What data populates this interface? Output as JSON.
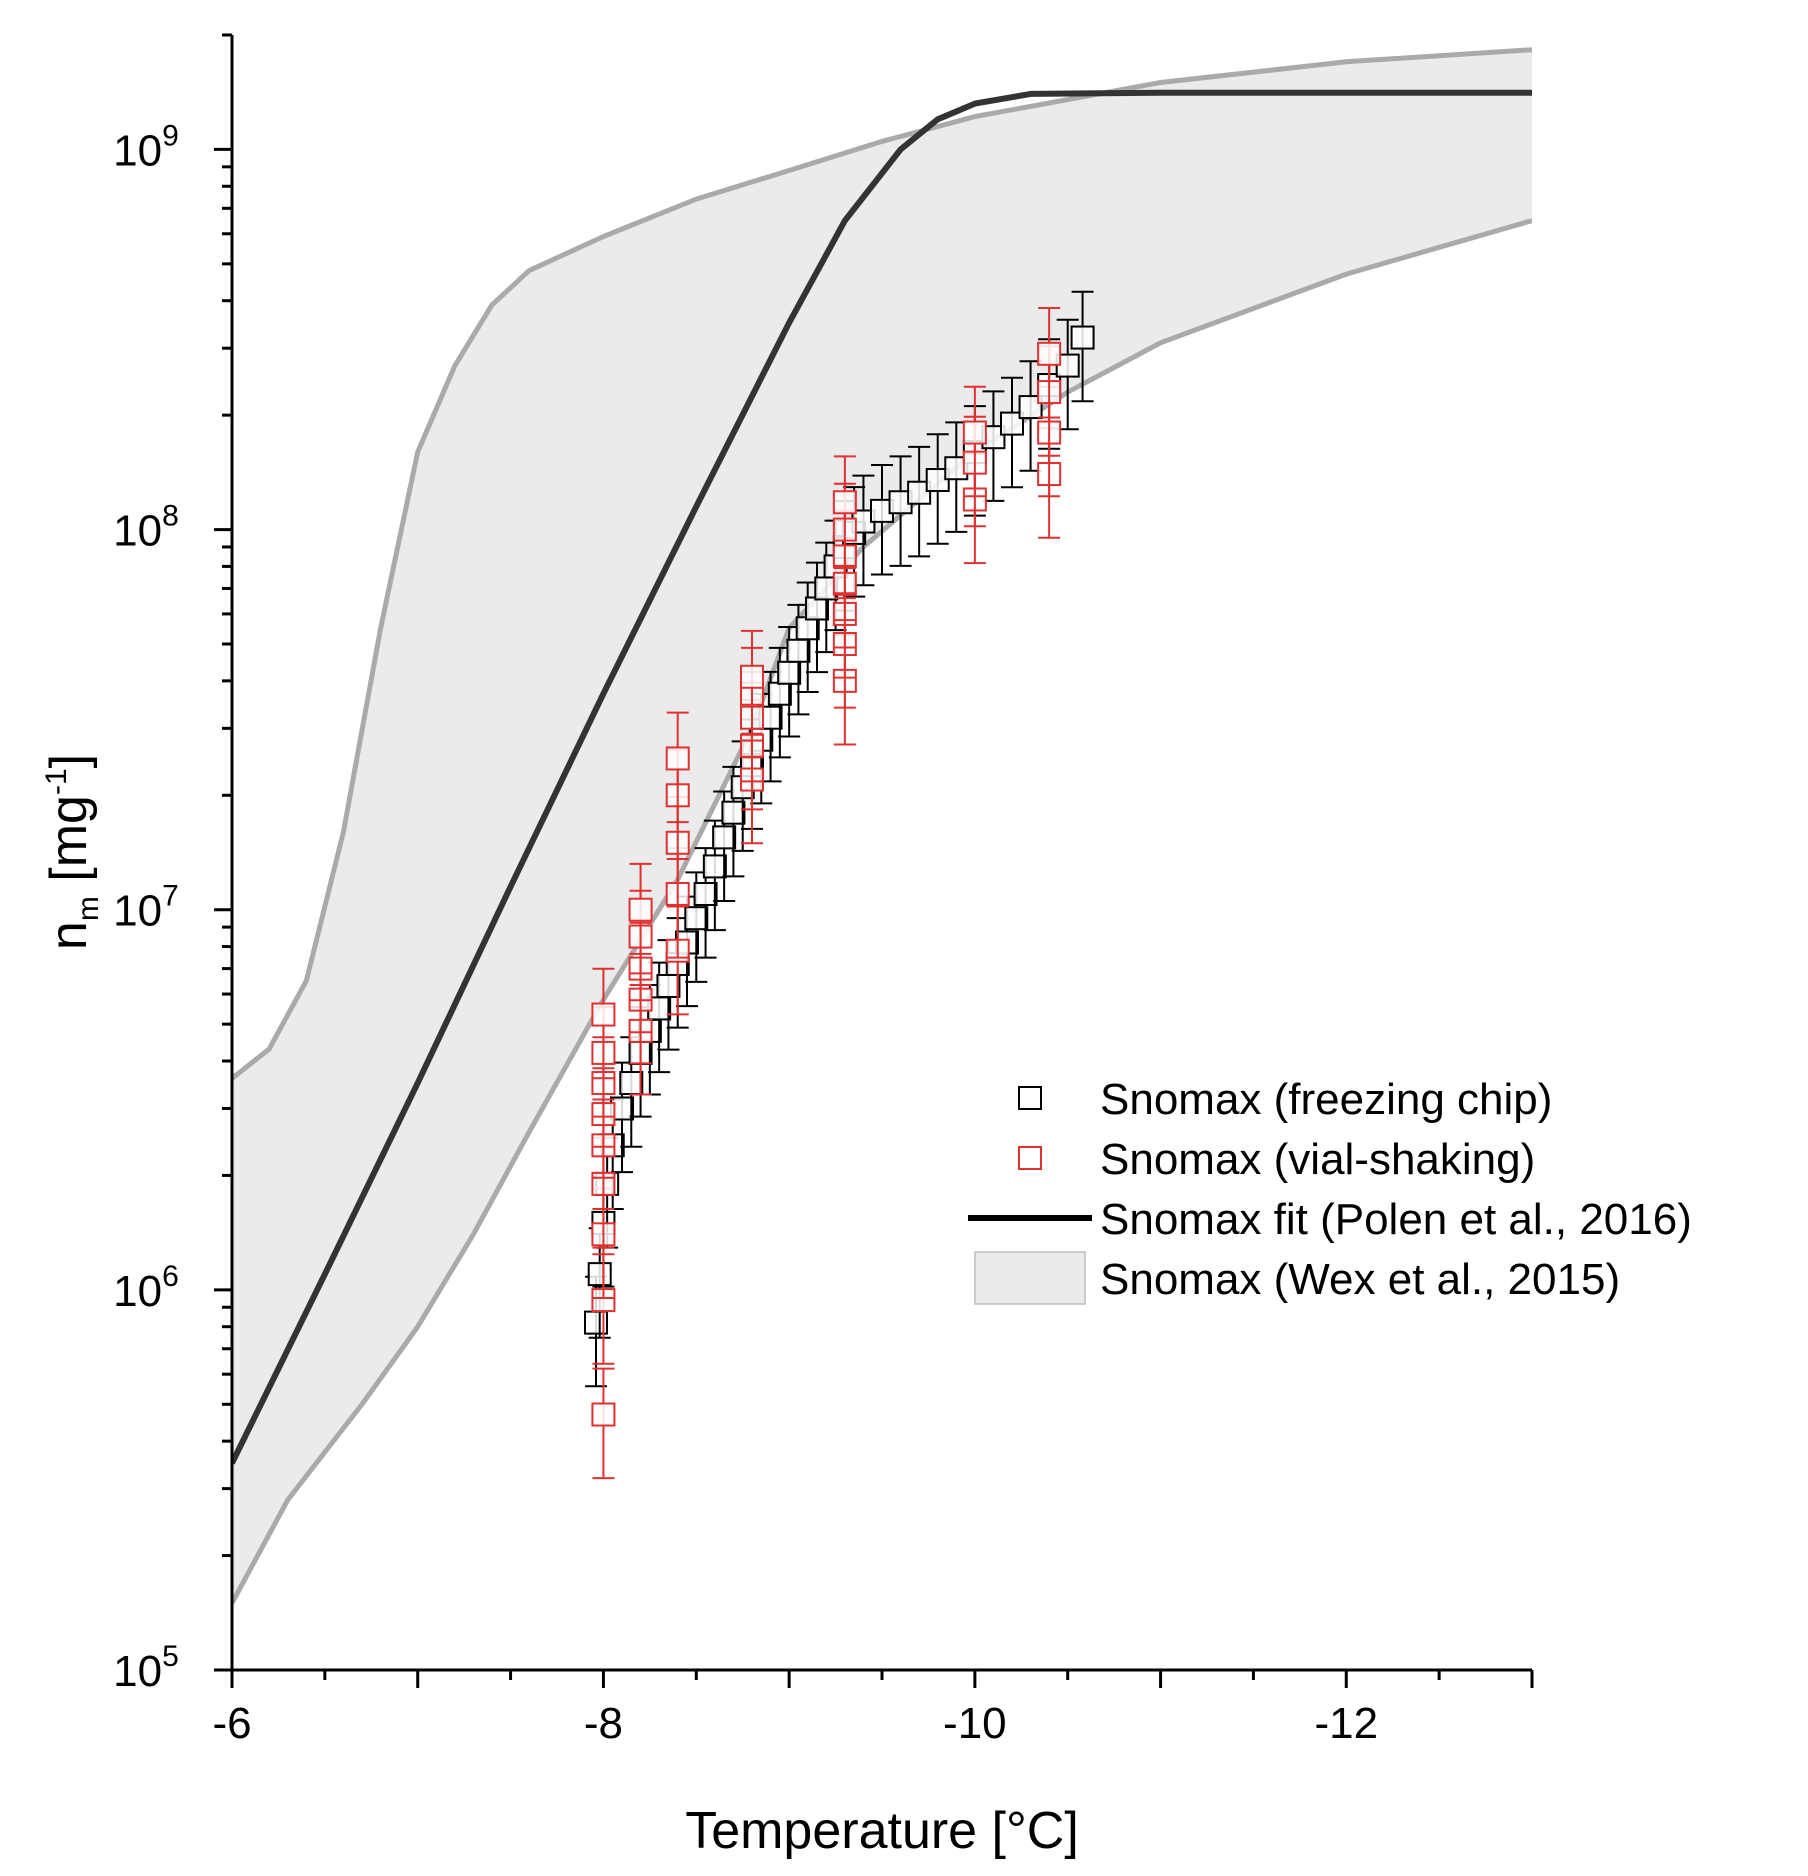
{
  "chart_data": {
    "type": "scatter",
    "title": "",
    "xlabel": "Temperature [°C]",
    "ylabel": {
      "base": "n",
      "subscript": "m",
      "unit_open": " [mg",
      "unit_exp": "-1",
      "unit_close": "]"
    },
    "x_range": [
      -6,
      -13
    ],
    "y_range": [
      100000,
      2000000000
    ],
    "y_scale": "log",
    "grid": false,
    "legend_position": "right-middle",
    "x_ticks": [
      {
        "value": -6,
        "label": "-6"
      },
      {
        "value": -8,
        "label": "-8"
      },
      {
        "value": -10,
        "label": "-10"
      },
      {
        "value": -12,
        "label": "-12"
      }
    ],
    "y_ticks": [
      {
        "value": 100000,
        "base": "10",
        "exp": "5"
      },
      {
        "value": 1000000,
        "base": "10",
        "exp": "6"
      },
      {
        "value": 10000000,
        "base": "10",
        "exp": "7"
      },
      {
        "value": 100000000,
        "base": "10",
        "exp": "8"
      },
      {
        "value": 1000000000,
        "base": "10",
        "exp": "9"
      }
    ],
    "legend": [
      {
        "label": "Snomax (freezing chip)",
        "kind": "marker",
        "color": "#000000"
      },
      {
        "label": "Snomax (vial-shaking)",
        "kind": "marker",
        "color": "#e03030"
      },
      {
        "label": "Snomax fit (Polen et al., 2016)",
        "kind": "line",
        "color": "#000000"
      },
      {
        "label": "Snomax (Wex et al., 2015)",
        "kind": "band",
        "color": "#ebebeb"
      }
    ],
    "series": [
      {
        "name": "Snomax (Wex et al., 2015)",
        "type": "band",
        "color": "#ebebeb",
        "edge_color": "#aaaaaa",
        "upper": [
          [
            -6.0,
            3600000
          ],
          [
            -6.2,
            4300000
          ],
          [
            -6.4,
            6500000
          ],
          [
            -6.6,
            16000000
          ],
          [
            -6.8,
            55000000
          ],
          [
            -7.0,
            160000000
          ],
          [
            -7.2,
            270000000
          ],
          [
            -7.4,
            390000000
          ],
          [
            -7.6,
            480000000
          ],
          [
            -8.0,
            590000000
          ],
          [
            -8.5,
            740000000
          ],
          [
            -9.0,
            880000000
          ],
          [
            -9.5,
            1050000000
          ],
          [
            -10.0,
            1220000000
          ],
          [
            -11.0,
            1500000000
          ],
          [
            -12.0,
            1700000000
          ],
          [
            -13.0,
            1830000000
          ]
        ],
        "lower": [
          [
            -6.0,
            150000
          ],
          [
            -6.3,
            280000
          ],
          [
            -6.7,
            500000
          ],
          [
            -7.0,
            800000
          ],
          [
            -7.3,
            1400000
          ],
          [
            -7.6,
            2600000
          ],
          [
            -8.0,
            5800000
          ],
          [
            -8.4,
            12000000
          ],
          [
            -8.8,
            30000000
          ],
          [
            -9.0,
            55000000
          ],
          [
            -9.4,
            90000000
          ],
          [
            -10.0,
            160000000
          ],
          [
            -10.5,
            230000000
          ],
          [
            -11.0,
            310000000
          ],
          [
            -12.0,
            470000000
          ],
          [
            -13.0,
            650000000
          ]
        ]
      },
      {
        "name": "Snomax fit (Polen et al., 2016)",
        "type": "line",
        "color": "#333333",
        "points": [
          [
            -6.0,
            350000
          ],
          [
            -6.5,
            1100000
          ],
          [
            -7.0,
            3500000
          ],
          [
            -7.5,
            11500000
          ],
          [
            -8.0,
            37000000
          ],
          [
            -8.5,
            115000000
          ],
          [
            -9.0,
            350000000
          ],
          [
            -9.3,
            650000000
          ],
          [
            -9.6,
            1000000000
          ],
          [
            -9.8,
            1200000000
          ],
          [
            -10.0,
            1320000000
          ],
          [
            -10.3,
            1400000000
          ],
          [
            -11.0,
            1410000000
          ],
          [
            -12.0,
            1410000000
          ],
          [
            -13.0,
            1410000000
          ]
        ]
      },
      {
        "name": "Snomax (freezing chip)",
        "type": "scatter",
        "color": "#000000",
        "err_rel": 0.32,
        "points": [
          [
            -7.96,
            820000
          ],
          [
            -7.98,
            1100000
          ],
          [
            -8.0,
            1500000
          ],
          [
            -8.02,
            1900000
          ],
          [
            -8.05,
            2400000
          ],
          [
            -8.1,
            3000000
          ],
          [
            -8.15,
            3500000
          ],
          [
            -8.2,
            4200000
          ],
          [
            -8.25,
            4800000
          ],
          [
            -8.3,
            5500000
          ],
          [
            -8.35,
            6300000
          ],
          [
            -8.4,
            7200000
          ],
          [
            -8.45,
            8200000
          ],
          [
            -8.5,
            9500000
          ],
          [
            -8.55,
            11000000
          ],
          [
            -8.6,
            13000000
          ],
          [
            -8.65,
            15500000
          ],
          [
            -8.7,
            18000000
          ],
          [
            -8.75,
            21000000
          ],
          [
            -8.8,
            24000000
          ],
          [
            -8.85,
            28000000
          ],
          [
            -8.9,
            32000000
          ],
          [
            -8.95,
            37000000
          ],
          [
            -9.0,
            42000000
          ],
          [
            -9.05,
            48000000
          ],
          [
            -9.1,
            55000000
          ],
          [
            -9.15,
            62000000
          ],
          [
            -9.2,
            70000000
          ],
          [
            -9.25,
            80000000
          ],
          [
            -9.3,
            90000000
          ],
          [
            -9.35,
            98000000
          ],
          [
            -9.4,
            105000000
          ],
          [
            -9.5,
            112000000
          ],
          [
            -9.6,
            118000000
          ],
          [
            -9.7,
            125000000
          ],
          [
            -9.8,
            135000000
          ],
          [
            -9.9,
            145000000
          ],
          [
            -10.0,
            160000000
          ],
          [
            -10.1,
            175000000
          ],
          [
            -10.2,
            190000000
          ],
          [
            -10.3,
            210000000
          ],
          [
            -10.4,
            240000000
          ],
          [
            -10.5,
            270000000
          ],
          [
            -10.58,
            320000000
          ]
        ]
      },
      {
        "name": "Snomax (vial-shaking)",
        "type": "scatter",
        "color": "#e03030",
        "err_rel": 0.32,
        "points": [
          [
            -8.0,
            470000
          ],
          [
            -8.0,
            940000
          ],
          [
            -8.0,
            1400000
          ],
          [
            -8.0,
            1900000
          ],
          [
            -8.0,
            2400000
          ],
          [
            -8.0,
            2900000
          ],
          [
            -8.0,
            3500000
          ],
          [
            -8.0,
            4200000
          ],
          [
            -8.0,
            5300000
          ],
          [
            -8.2,
            4800000
          ],
          [
            -8.2,
            5800000
          ],
          [
            -8.2,
            7000000
          ],
          [
            -8.2,
            8500000
          ],
          [
            -8.2,
            10000000
          ],
          [
            -8.4,
            7800000
          ],
          [
            -8.4,
            11000000
          ],
          [
            -8.4,
            15000000
          ],
          [
            -8.4,
            20000000
          ],
          [
            -8.4,
            25000000
          ],
          [
            -8.8,
            22000000
          ],
          [
            -8.8,
            27000000
          ],
          [
            -8.8,
            32000000
          ],
          [
            -8.8,
            37000000
          ],
          [
            -8.8,
            41000000
          ],
          [
            -9.3,
            40000000
          ],
          [
            -9.3,
            50000000
          ],
          [
            -9.3,
            60000000
          ],
          [
            -9.3,
            72000000
          ],
          [
            -9.3,
            85000000
          ],
          [
            -9.3,
            100000000
          ],
          [
            -9.3,
            118000000
          ],
          [
            -10.0,
            120000000
          ],
          [
            -10.0,
            150000000
          ],
          [
            -10.0,
            180000000
          ],
          [
            -10.4,
            140000000
          ],
          [
            -10.4,
            180000000
          ],
          [
            -10.4,
            230000000
          ],
          [
            -10.4,
            290000000
          ]
        ]
      }
    ]
  }
}
